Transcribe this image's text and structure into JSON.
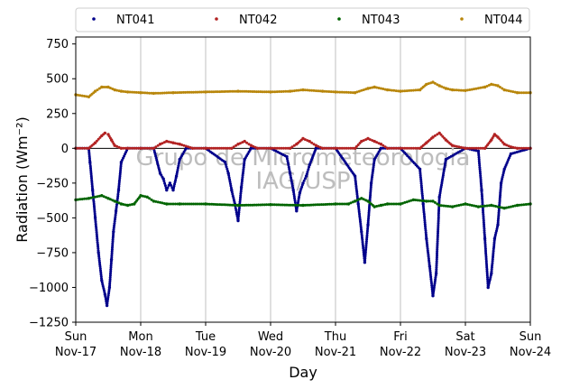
{
  "chart_data": {
    "type": "scatter",
    "title": "",
    "xlabel": "Day",
    "ylabel": "Radiation (Wm⁻²)",
    "ylim": [
      -1250,
      800
    ],
    "yticks": [
      750,
      500,
      250,
      0,
      -250,
      -500,
      -750,
      -1000,
      -1250
    ],
    "xlim": [
      0,
      7
    ],
    "xticks": [
      {
        "day": "Sun",
        "date": "Nov-17"
      },
      {
        "day": "Mon",
        "date": "Nov-18"
      },
      {
        "day": "Tue",
        "date": "Nov-19"
      },
      {
        "day": "Wed",
        "date": "Nov-20"
      },
      {
        "day": "Thu",
        "date": "Nov-21"
      },
      {
        "day": "Fri",
        "date": "Nov-22"
      },
      {
        "day": "Sat",
        "date": "Nov-23"
      },
      {
        "day": "Sun",
        "date": "Nov-24"
      }
    ],
    "grid": "vertical",
    "legend_position": "top",
    "zero_line": 0,
    "watermark": [
      "Grupo de Micrometeorologia",
      "IAG/USP"
    ],
    "series": [
      {
        "name": "NT041",
        "color": "#00008b",
        "x": [
          0.0,
          0.2,
          0.22,
          0.26,
          0.3,
          0.35,
          0.4,
          0.45,
          0.48,
          0.52,
          0.55,
          0.58,
          0.62,
          0.66,
          0.7,
          0.8,
          1.0,
          1.2,
          1.3,
          1.35,
          1.4,
          1.45,
          1.5,
          1.55,
          1.6,
          1.7,
          2.0,
          2.3,
          2.35,
          2.4,
          2.45,
          2.5,
          2.55,
          2.6,
          2.7,
          3.0,
          3.25,
          3.3,
          3.35,
          3.4,
          3.45,
          3.5,
          3.55,
          3.6,
          3.7,
          4.0,
          4.3,
          4.35,
          4.4,
          4.45,
          4.5,
          4.55,
          4.6,
          4.7,
          5.0,
          5.3,
          5.35,
          5.4,
          5.45,
          5.5,
          5.55,
          5.6,
          5.7,
          6.0,
          6.2,
          6.25,
          6.3,
          6.35,
          6.4,
          6.45,
          6.5,
          6.55,
          6.6,
          6.7,
          7.0
        ],
        "y": [
          0,
          0,
          -100,
          -300,
          -500,
          -750,
          -950,
          -1050,
          -1130,
          -1000,
          -800,
          -600,
          -450,
          -300,
          -100,
          0,
          0,
          0,
          -180,
          -220,
          -300,
          -250,
          -300,
          -200,
          -80,
          0,
          0,
          -100,
          -180,
          -300,
          -400,
          -520,
          -280,
          -80,
          0,
          0,
          -60,
          -180,
          -300,
          -450,
          -320,
          -250,
          -200,
          -120,
          0,
          0,
          -200,
          -400,
          -600,
          -820,
          -550,
          -250,
          -80,
          0,
          0,
          -150,
          -400,
          -650,
          -850,
          -1060,
          -900,
          -350,
          -80,
          0,
          -20,
          -300,
          -650,
          -1000,
          -900,
          -650,
          -550,
          -250,
          -150,
          -40,
          0
        ]
      },
      {
        "name": "NT042",
        "color": "#b22222",
        "x": [
          0.0,
          0.2,
          0.3,
          0.4,
          0.45,
          0.5,
          0.55,
          0.6,
          0.7,
          0.8,
          1.0,
          1.2,
          1.3,
          1.4,
          1.5,
          1.6,
          1.8,
          2.0,
          2.4,
          2.5,
          2.6,
          2.7,
          2.8,
          3.0,
          3.3,
          3.4,
          3.5,
          3.6,
          3.7,
          3.8,
          4.0,
          4.3,
          4.4,
          4.5,
          4.6,
          4.7,
          4.8,
          5.0,
          5.3,
          5.4,
          5.5,
          5.6,
          5.7,
          5.8,
          6.0,
          6.3,
          6.4,
          6.45,
          6.5,
          6.6,
          6.7,
          6.8,
          7.0
        ],
        "y": [
          0,
          0,
          40,
          90,
          110,
          100,
          60,
          20,
          0,
          0,
          0,
          0,
          30,
          50,
          40,
          30,
          0,
          0,
          0,
          30,
          50,
          20,
          0,
          0,
          0,
          30,
          70,
          50,
          20,
          0,
          0,
          0,
          50,
          70,
          50,
          30,
          0,
          0,
          0,
          40,
          80,
          110,
          60,
          20,
          0,
          0,
          60,
          100,
          80,
          30,
          10,
          0,
          0
        ]
      },
      {
        "name": "NT043",
        "color": "#006400",
        "x": [
          0.0,
          0.2,
          0.4,
          0.5,
          0.6,
          0.7,
          0.8,
          0.9,
          1.0,
          1.1,
          1.2,
          1.4,
          1.6,
          2.0,
          2.5,
          3.0,
          3.5,
          4.0,
          4.2,
          4.3,
          4.4,
          4.5,
          4.6,
          4.7,
          4.8,
          5.0,
          5.2,
          5.4,
          5.5,
          5.6,
          5.8,
          6.0,
          6.2,
          6.4,
          6.6,
          6.8,
          7.0
        ],
        "y": [
          -370,
          -360,
          -340,
          -360,
          -380,
          -400,
          -410,
          -400,
          -340,
          -350,
          -380,
          -400,
          -400,
          -400,
          -410,
          -405,
          -410,
          -400,
          -400,
          -380,
          -360,
          -380,
          -420,
          -410,
          -400,
          -400,
          -370,
          -380,
          -380,
          -410,
          -420,
          -400,
          -420,
          -410,
          -430,
          -410,
          -400
        ]
      },
      {
        "name": "NT044",
        "color": "#b8860b",
        "x": [
          0.0,
          0.2,
          0.3,
          0.4,
          0.5,
          0.6,
          0.7,
          0.8,
          1.0,
          1.2,
          1.5,
          2.0,
          2.5,
          3.0,
          3.3,
          3.5,
          3.8,
          4.0,
          4.3,
          4.5,
          4.6,
          4.8,
          5.0,
          5.3,
          5.4,
          5.5,
          5.6,
          5.7,
          5.8,
          6.0,
          6.3,
          6.4,
          6.5,
          6.6,
          6.8,
          7.0
        ],
        "y": [
          385,
          370,
          410,
          440,
          440,
          420,
          410,
          405,
          400,
          395,
          400,
          405,
          410,
          405,
          410,
          420,
          410,
          405,
          400,
          430,
          440,
          420,
          410,
          420,
          460,
          475,
          450,
          430,
          420,
          415,
          440,
          460,
          450,
          420,
          400,
          400
        ]
      }
    ]
  }
}
